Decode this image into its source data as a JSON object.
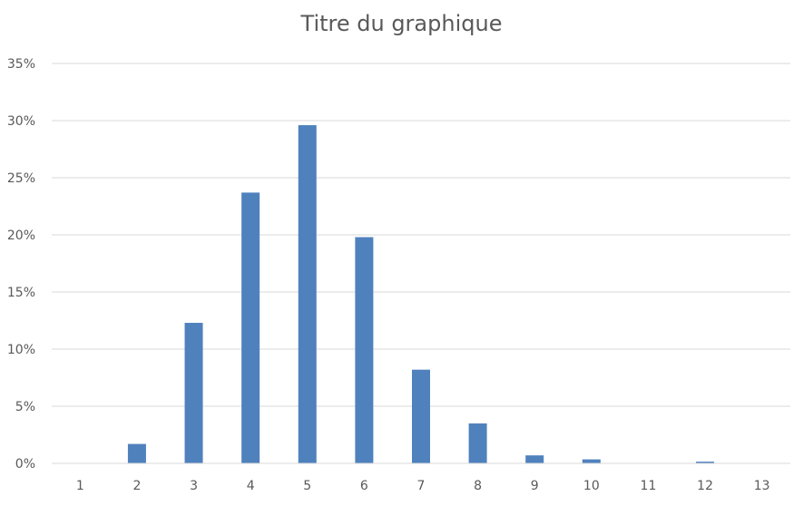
{
  "chart_data": {
    "type": "bar",
    "title": "Titre du graphique",
    "categories": [
      "1",
      "2",
      "3",
      "4",
      "5",
      "6",
      "7",
      "8",
      "9",
      "10",
      "11",
      "12",
      "13"
    ],
    "values": [
      0,
      1.7,
      12.3,
      23.7,
      29.6,
      19.8,
      8.2,
      3.5,
      0.7,
      0.35,
      0,
      0.15,
      0
    ],
    "y_tick_labels": [
      "0%",
      "5%",
      "10%",
      "15%",
      "20%",
      "25%",
      "30%",
      "35%"
    ],
    "ylim": [
      0,
      35
    ],
    "y_unit": "%",
    "grid": true,
    "legend": "none",
    "xlabel": "",
    "ylabel": "",
    "colors": {
      "bar": "#4f81bd",
      "grid": "#d9d9d9",
      "text": "#595959"
    }
  }
}
